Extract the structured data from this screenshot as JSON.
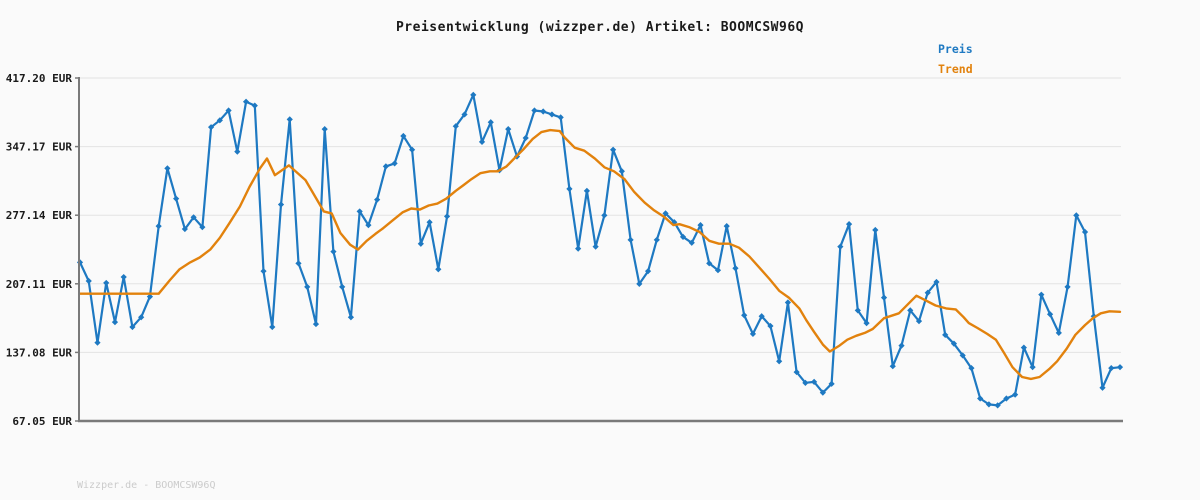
{
  "title": "Preisentwicklung (wizzper.de) Artikel: BOOMCSW96Q",
  "legend": {
    "price_label": "Preis",
    "trend_label": "Trend"
  },
  "watermark": "Wizzper.de - BOOMCSW96Q",
  "colors": {
    "price": "#1e79c2",
    "trend": "#e2820d",
    "grid": "#e3e3e3",
    "axis": "#7a7a7a",
    "text": "#1a1a1a",
    "watermark": "#cbcbcb",
    "background": "#fafafa"
  },
  "chart_data": {
    "type": "line",
    "title": "Preisentwicklung (wizzper.de) Artikel: BOOMCSW96Q",
    "currency": "EUR",
    "ylim": [
      67.05,
      417.2
    ],
    "grid": "horizontal",
    "legend_position": "top-right",
    "y_ticks": [
      {
        "label": "417.20 EUR",
        "value": 417.2
      },
      {
        "label": "347.17 EUR",
        "value": 347.17
      },
      {
        "label": "277.14 EUR",
        "value": 277.14
      },
      {
        "label": "207.11 EUR",
        "value": 207.11
      },
      {
        "label": "137.08 EUR",
        "value": 137.08
      },
      {
        "label": "67.05 EUR",
        "value": 67.05
      }
    ],
    "series": [
      {
        "name": "Preis",
        "style": "line-with-diamond-markers",
        "values": [
          229,
          210,
          147,
          208,
          168,
          214,
          163,
          173,
          194,
          266,
          325,
          294,
          263,
          275,
          265,
          367,
          374,
          384,
          342,
          393,
          389,
          220,
          163,
          288,
          375,
          228,
          204,
          166,
          365,
          240,
          204,
          173,
          281,
          267,
          293,
          327,
          330,
          358,
          344,
          248,
          270,
          222,
          276,
          368,
          380,
          400,
          352,
          372,
          323,
          365,
          337,
          356,
          384,
          383,
          380,
          377,
          304,
          243,
          302,
          245,
          277,
          344,
          322,
          252,
          207,
          220,
          252,
          279,
          270,
          255,
          249,
          267,
          228,
          221,
          266,
          223,
          175,
          156,
          174,
          164,
          128,
          188,
          117,
          106,
          107,
          96,
          105,
          245,
          268,
          180,
          167,
          262,
          193,
          123,
          144,
          180,
          169,
          198,
          209,
          155,
          146,
          134,
          121,
          90,
          84,
          83,
          90,
          94,
          142,
          122,
          196,
          176,
          157,
          204,
          277,
          260,
          174,
          101,
          121,
          122
        ]
      },
      {
        "name": "Trend",
        "style": "smooth-line",
        "anchors": [
          [
            0,
            197
          ],
          [
            9,
            197
          ],
          [
            10.3,
            211
          ],
          [
            11.4,
            222
          ],
          [
            12.6,
            229
          ],
          [
            13.7,
            234
          ],
          [
            14.9,
            242
          ],
          [
            16,
            254
          ],
          [
            17.1,
            269
          ],
          [
            18.3,
            286
          ],
          [
            19.4,
            306
          ],
          [
            20.6,
            325
          ],
          [
            21.4,
            335
          ],
          [
            22.3,
            318
          ],
          [
            23.9,
            328
          ],
          [
            25.8,
            313
          ],
          [
            27.9,
            281
          ],
          [
            28.8,
            279
          ],
          [
            29.8,
            259
          ],
          [
            30.9,
            247
          ],
          [
            31.8,
            242
          ],
          [
            32.8,
            251
          ],
          [
            33.8,
            258
          ],
          [
            34.7,
            264
          ],
          [
            35.8,
            272
          ],
          [
            36.9,
            280
          ],
          [
            37.9,
            284
          ],
          [
            38.9,
            283
          ],
          [
            39.9,
            287
          ],
          [
            40.9,
            289
          ],
          [
            41.9,
            294
          ],
          [
            43,
            302
          ],
          [
            43.9,
            308
          ],
          [
            44.8,
            314
          ],
          [
            45.8,
            320
          ],
          [
            46.9,
            322
          ],
          [
            47.8,
            322
          ],
          [
            48.8,
            327
          ],
          [
            49.8,
            336
          ],
          [
            50.7,
            344
          ],
          [
            51.8,
            355
          ],
          [
            52.8,
            362
          ],
          [
            53.8,
            364
          ],
          [
            54.9,
            363
          ],
          [
            55.4,
            357
          ],
          [
            56.6,
            346
          ],
          [
            57.7,
            343
          ],
          [
            58.9,
            335
          ],
          [
            60,
            326
          ],
          [
            61.1,
            322
          ],
          [
            62.3,
            314
          ],
          [
            63.4,
            301
          ],
          [
            64.6,
            290
          ],
          [
            65.7,
            282
          ],
          [
            66.9,
            275
          ],
          [
            67.9,
            267
          ],
          [
            68.6,
            268
          ],
          [
            69.7,
            265
          ],
          [
            70.9,
            260
          ],
          [
            72,
            251
          ],
          [
            73.1,
            248
          ],
          [
            74.3,
            248
          ],
          [
            75.4,
            244
          ],
          [
            76.6,
            235
          ],
          [
            77.7,
            224
          ],
          [
            78.9,
            212
          ],
          [
            80,
            200
          ],
          [
            81.1,
            193
          ],
          [
            82.3,
            182
          ],
          [
            83.1,
            170
          ],
          [
            84,
            158
          ],
          [
            85,
            145
          ],
          [
            85.8,
            138
          ],
          [
            86.9,
            144
          ],
          [
            87.8,
            150
          ],
          [
            88.8,
            154
          ],
          [
            89.8,
            157
          ],
          [
            90.7,
            161
          ],
          [
            92,
            172
          ],
          [
            93.7,
            177
          ],
          [
            95.7,
            195
          ],
          [
            96.8,
            190
          ],
          [
            97.9,
            185
          ],
          [
            99.1,
            182
          ],
          [
            100.2,
            181
          ],
          [
            101.1,
            173
          ],
          [
            101.7,
            167
          ],
          [
            102.7,
            162
          ],
          [
            103.8,
            156
          ],
          [
            104.8,
            150
          ],
          [
            105.7,
            137
          ],
          [
            106.7,
            122
          ],
          [
            107.8,
            112
          ],
          [
            108.8,
            110
          ],
          [
            109.8,
            112
          ],
          [
            110.9,
            120
          ],
          [
            111.8,
            128
          ],
          [
            112.9,
            141
          ],
          [
            113.9,
            155
          ],
          [
            115,
            165
          ],
          [
            115.9,
            172
          ],
          [
            116.8,
            177
          ],
          [
            117.8,
            179
          ],
          [
            119,
            178.5
          ]
        ]
      }
    ]
  }
}
